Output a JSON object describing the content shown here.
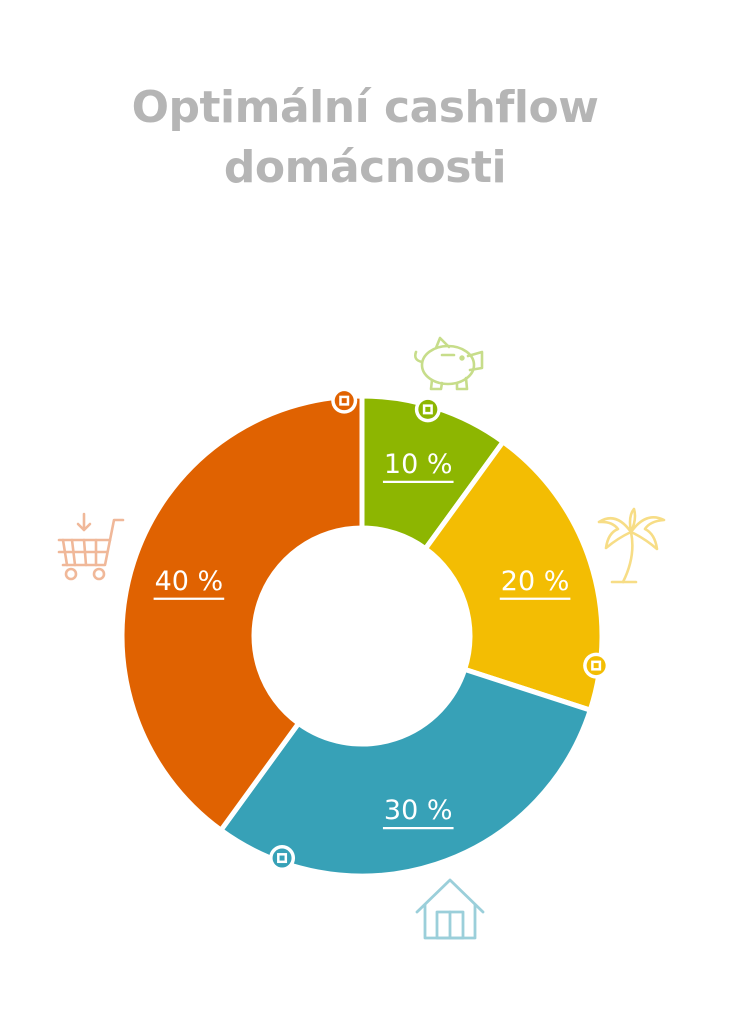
{
  "title": {
    "line1": "Optimální cashflow",
    "line2": "domácnosti"
  },
  "colors": {
    "title": "#b5b5b5",
    "savings": "#8db601",
    "leisure": "#f3bd03",
    "housing": "#37a1b7",
    "consumption": "#e06201"
  },
  "chart_data": {
    "type": "pie",
    "subtype": "donut",
    "title": "Optimální cashflow domácnosti",
    "slices": [
      {
        "label": "10 %",
        "value": 10,
        "icon": "piggy-bank-icon",
        "color": "#8db601"
      },
      {
        "label": "20 %",
        "value": 20,
        "icon": "palm-tree-icon",
        "color": "#f3bd03"
      },
      {
        "label": "30 %",
        "value": 30,
        "icon": "house-icon",
        "color": "#37a1b7"
      },
      {
        "label": "40 %",
        "value": 40,
        "icon": "shopping-cart-icon",
        "color": "#e06201"
      }
    ]
  }
}
